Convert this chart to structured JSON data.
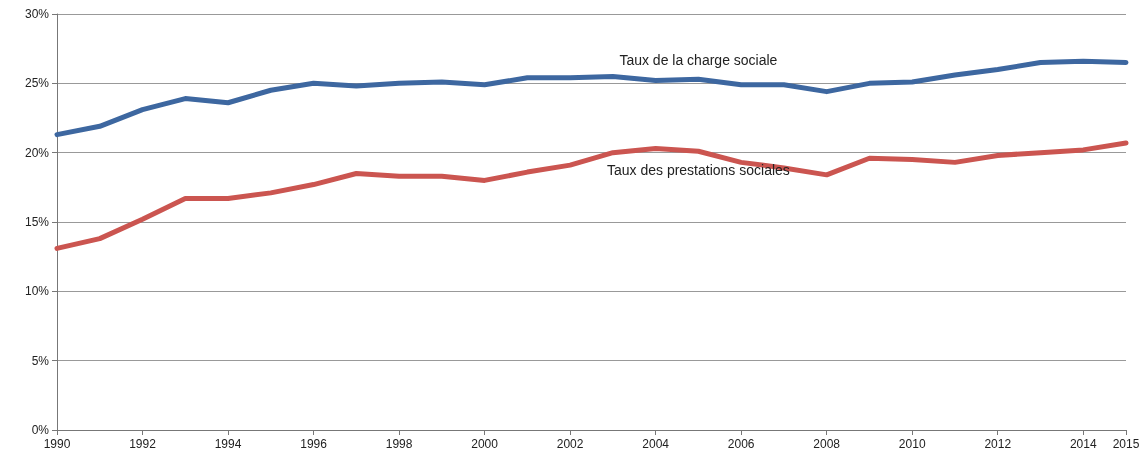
{
  "chart_data": {
    "type": "line",
    "x": [
      1990,
      1991,
      1992,
      1993,
      1994,
      1995,
      1996,
      1997,
      1998,
      1999,
      2000,
      2001,
      2002,
      2003,
      2004,
      2005,
      2006,
      2007,
      2008,
      2009,
      2010,
      2011,
      2012,
      2013,
      2014,
      2015
    ],
    "series": [
      {
        "name": "Taux de la charge sociale",
        "color": "#3d67a0",
        "values": [
          21.3,
          21.9,
          23.1,
          23.9,
          23.6,
          24.5,
          25.0,
          24.8,
          25.0,
          25.1,
          24.9,
          25.4,
          25.4,
          25.5,
          25.2,
          25.3,
          24.9,
          24.9,
          24.4,
          25.0,
          25.1,
          25.6,
          26.0,
          26.5,
          26.6,
          26.5
        ]
      },
      {
        "name": "Taux des prestations sociales",
        "color": "#cb5550",
        "values": [
          13.1,
          13.8,
          15.2,
          16.7,
          16.7,
          17.1,
          17.7,
          18.5,
          18.3,
          18.3,
          18.0,
          18.6,
          19.1,
          20.0,
          20.3,
          20.1,
          19.3,
          18.9,
          18.4,
          19.6,
          19.5,
          19.3,
          19.8,
          20.0,
          20.2,
          20.7
        ]
      }
    ],
    "xlim": [
      1990,
      2015
    ],
    "xticks": [
      1990,
      1992,
      1994,
      1996,
      1998,
      2000,
      2002,
      2004,
      2006,
      2008,
      2010,
      2012,
      2014,
      2015
    ],
    "ylim": [
      0,
      30
    ],
    "yticks": [
      {
        "value": 0,
        "label": "0%"
      },
      {
        "value": 5,
        "label": "5%"
      },
      {
        "value": 10,
        "label": "10%"
      },
      {
        "value": 15,
        "label": "15%"
      },
      {
        "value": 20,
        "label": "20%"
      },
      {
        "value": 25,
        "label": "25%"
      },
      {
        "value": 30,
        "label": "30%"
      }
    ],
    "grid": "y",
    "marker": "none",
    "line_style": "solid"
  }
}
